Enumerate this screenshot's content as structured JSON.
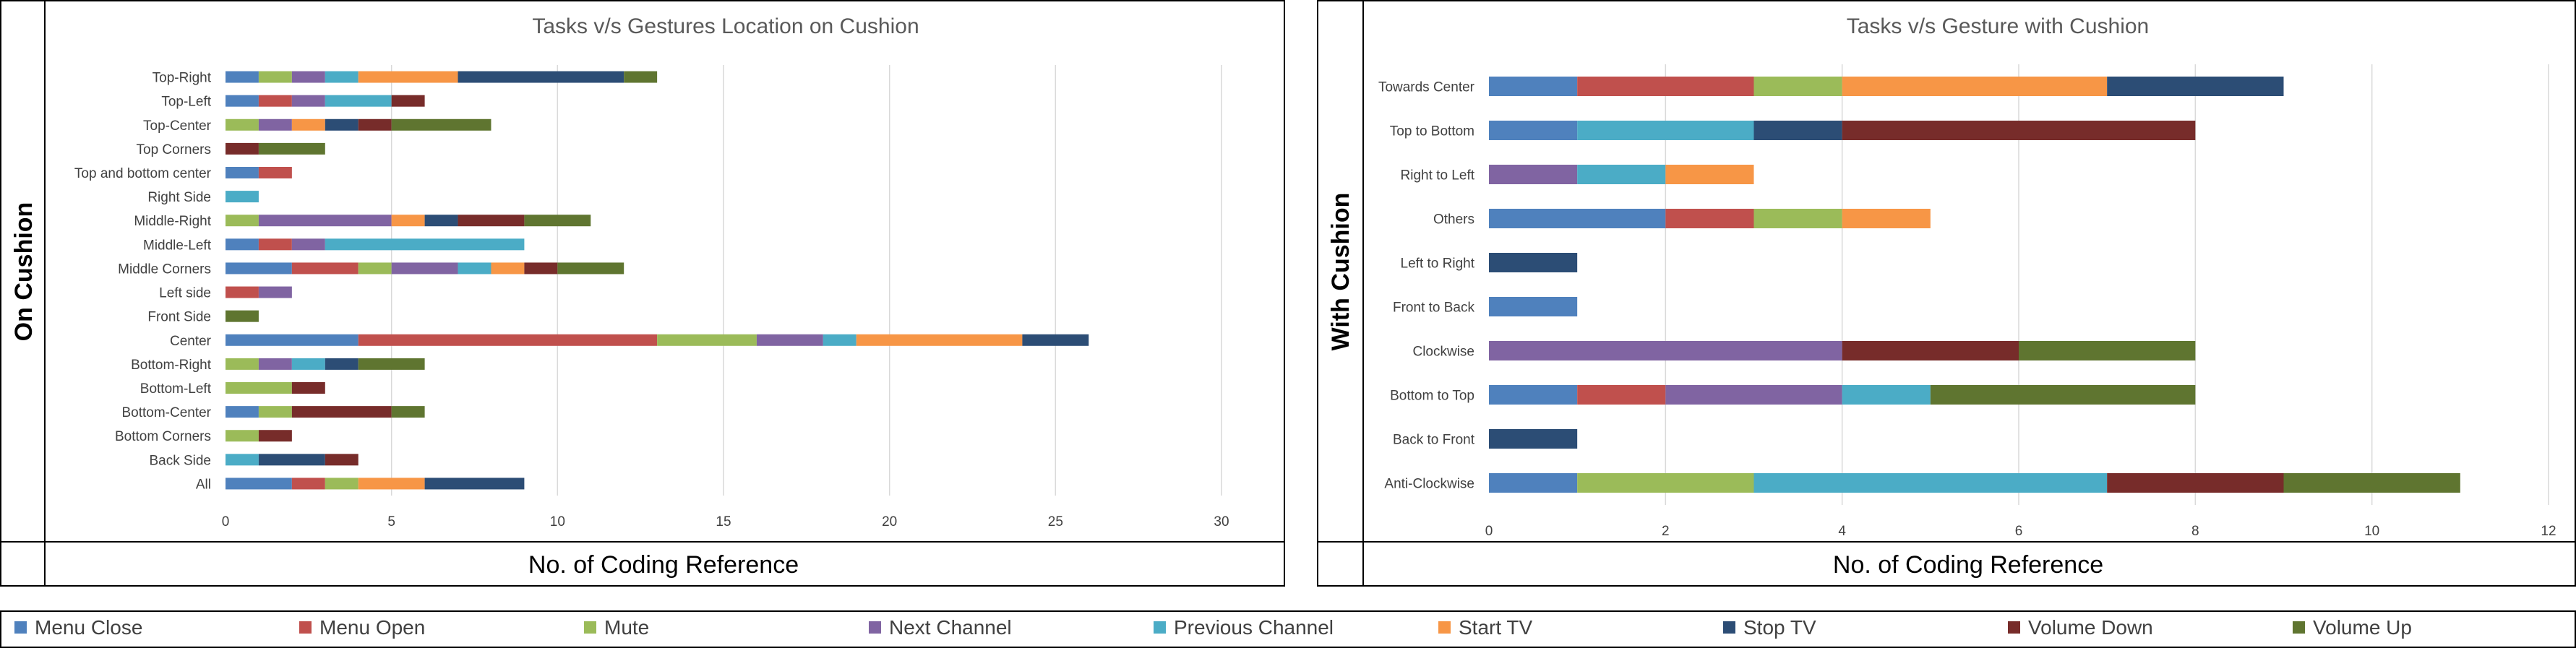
{
  "colors": {
    "Menu Close": "#4F81BD",
    "Menu Open": "#C0504D",
    "Mute": "#9BBB59",
    "Next Channel": "#8064A2",
    "Previous Channel": "#4BACC6",
    "Start TV": "#F79646",
    "Stop TV": "#2C4D75",
    "Volume Down": "#772C2A",
    "Volume Up": "#5F7530"
  },
  "legend": [
    "Menu Close",
    "Menu Open",
    "Mute",
    "Next Channel",
    "Previous Channel",
    "Start TV",
    "Stop TV",
    "Volume Down",
    "Volume Up"
  ],
  "chart_data": [
    {
      "type": "bar",
      "orientation": "horizontal",
      "stacked": true,
      "title": "Tasks v/s Gestures Location on Cushion",
      "xlabel": "No. of Coding Reference",
      "ylabel": "On Cushion",
      "xlim": [
        0,
        30
      ],
      "xticks": [
        "0",
        "5",
        "10",
        "15",
        "20",
        "25",
        "30"
      ],
      "grid": true,
      "legend_position": "bottom",
      "categories": [
        "Top-Right",
        "Top-Left",
        "Top-Center",
        "Top Corners",
        "Top and bottom center",
        "Right Side",
        "Middle-Right",
        "Middle-Left",
        "Middle Corners",
        "Left side",
        "Front Side",
        "Center",
        "Bottom-Right",
        "Bottom-Left",
        "Bottom-Center",
        "Bottom Corners",
        "Back Side",
        "All"
      ],
      "series": [
        {
          "name": "Menu Close",
          "values": [
            1,
            1,
            0,
            0,
            1,
            0,
            0,
            1,
            2,
            0,
            0,
            4,
            0,
            0,
            1,
            0,
            0,
            2
          ]
        },
        {
          "name": "Menu Open",
          "values": [
            0,
            1,
            0,
            0,
            1,
            0,
            0,
            1,
            2,
            1,
            0,
            9,
            0,
            0,
            0,
            0,
            0,
            1
          ]
        },
        {
          "name": "Mute",
          "values": [
            1,
            0,
            1,
            0,
            0,
            0,
            1,
            0,
            1,
            0,
            0,
            3,
            1,
            2,
            1,
            1,
            0,
            1
          ]
        },
        {
          "name": "Next Channel",
          "values": [
            1,
            1,
            1,
            0,
            0,
            0,
            4,
            1,
            2,
            1,
            0,
            2,
            1,
            0,
            0,
            0,
            0,
            0
          ]
        },
        {
          "name": "Previous Channel",
          "values": [
            1,
            2,
            0,
            0,
            0,
            1,
            0,
            6,
            1,
            0,
            0,
            1,
            1,
            0,
            0,
            0,
            1,
            0
          ]
        },
        {
          "name": "Start TV",
          "values": [
            3,
            0,
            1,
            0,
            0,
            0,
            1,
            0,
            1,
            0,
            0,
            5,
            0,
            0,
            0,
            0,
            0,
            2
          ]
        },
        {
          "name": "Stop TV",
          "values": [
            5,
            0,
            1,
            0,
            0,
            0,
            1,
            0,
            0,
            0,
            0,
            2,
            1,
            0,
            0,
            0,
            2,
            3
          ]
        },
        {
          "name": "Volume Down",
          "values": [
            0,
            1,
            1,
            1,
            0,
            0,
            2,
            0,
            1,
            0,
            0,
            0,
            0,
            1,
            3,
            1,
            1,
            0
          ]
        },
        {
          "name": "Volume Up",
          "values": [
            1,
            0,
            3,
            2,
            0,
            0,
            2,
            0,
            2,
            0,
            1,
            0,
            2,
            0,
            1,
            0,
            0,
            0
          ]
        }
      ]
    },
    {
      "type": "bar",
      "orientation": "horizontal",
      "stacked": true,
      "title": "Tasks v/s Gesture with Cushion",
      "xlabel": "No. of Coding Reference",
      "ylabel": "With Cushion",
      "xlim": [
        0,
        12
      ],
      "xticks": [
        "0",
        "2",
        "4",
        "6",
        "8",
        "10",
        "12"
      ],
      "grid": true,
      "legend_position": "bottom",
      "categories": [
        "Towards Center",
        "Top to Bottom",
        "Right to Left",
        "Others",
        "Left to Right",
        "Front to Back",
        "Clockwise",
        "Bottom to Top",
        "Back to Front",
        "Anti-Clockwise"
      ],
      "series": [
        {
          "name": "Menu Close",
          "values": [
            1,
            1,
            0,
            2,
            0,
            1,
            0,
            1,
            0,
            1
          ]
        },
        {
          "name": "Menu Open",
          "values": [
            2,
            0,
            0,
            1,
            0,
            0,
            0,
            1,
            0,
            0
          ]
        },
        {
          "name": "Mute",
          "values": [
            1,
            0,
            0,
            1,
            0,
            0,
            0,
            0,
            0,
            2
          ]
        },
        {
          "name": "Next Channel",
          "values": [
            0,
            0,
            1,
            0,
            0,
            0,
            4,
            2,
            0,
            0
          ]
        },
        {
          "name": "Previous Channel",
          "values": [
            0,
            2,
            1,
            0,
            0,
            0,
            0,
            1,
            0,
            4
          ]
        },
        {
          "name": "Start TV",
          "values": [
            3,
            0,
            1,
            1,
            0,
            0,
            0,
            0,
            0,
            0
          ]
        },
        {
          "name": "Stop TV",
          "values": [
            2,
            1,
            0,
            0,
            1,
            0,
            0,
            0,
            1,
            0
          ]
        },
        {
          "name": "Volume Down",
          "values": [
            0,
            4,
            0,
            0,
            0,
            0,
            2,
            0,
            0,
            2
          ]
        },
        {
          "name": "Volume Up",
          "values": [
            0,
            0,
            0,
            0,
            0,
            0,
            2,
            3,
            0,
            2
          ]
        }
      ]
    }
  ]
}
